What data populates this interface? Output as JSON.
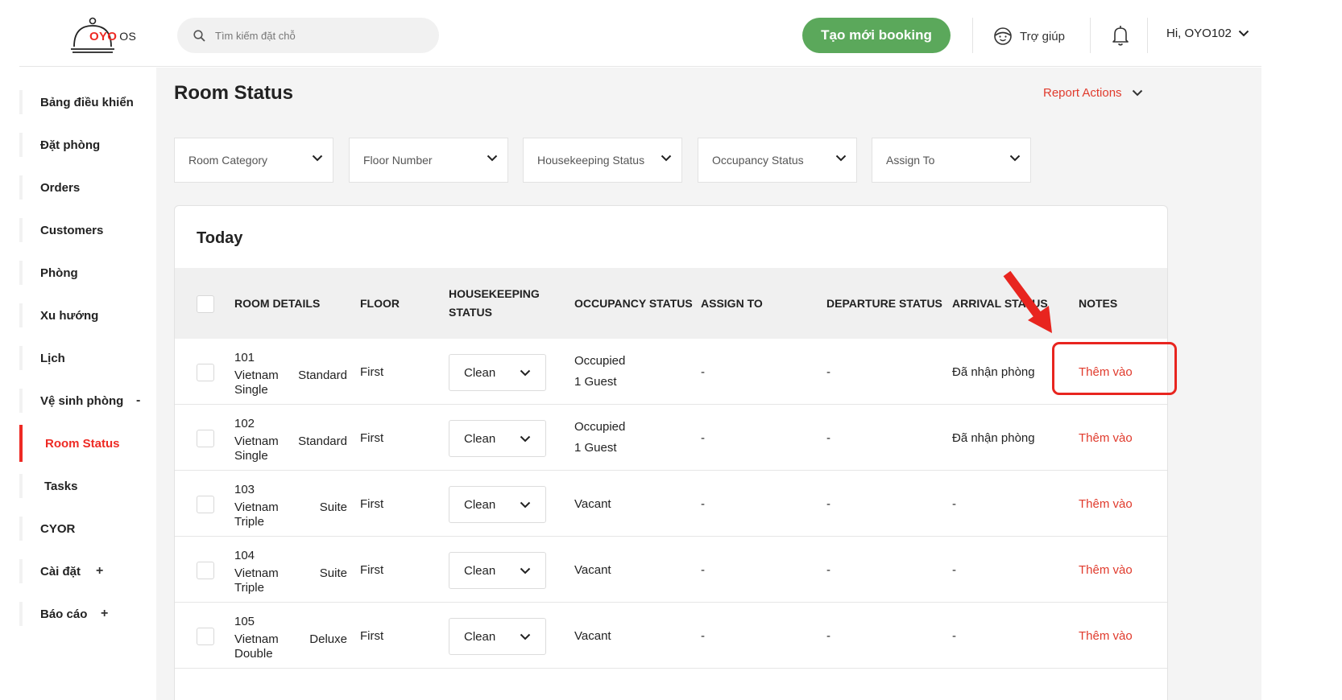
{
  "header": {
    "logo_brand": "OYO",
    "logo_suffix": "OS",
    "search_placeholder": "Tìm kiếm đặt chỗ",
    "new_booking_label": "Tạo mới booking",
    "help_label": "Trợ giúp",
    "user_label": "Hi, OYO102"
  },
  "sidebar": {
    "items": [
      {
        "label": "Bảng điều khiển"
      },
      {
        "label": "Đặt phòng"
      },
      {
        "label": "Orders"
      },
      {
        "label": "Customers"
      },
      {
        "label": "Phòng"
      },
      {
        "label": "Xu hướng"
      },
      {
        "label": "Lịch"
      },
      {
        "label": "Vệ sinh phòng",
        "sign": "-"
      },
      {
        "label": "Room Status"
      },
      {
        "label": "Tasks"
      },
      {
        "label": "CYOR"
      },
      {
        "label": "Cài đặt",
        "sign": "+"
      },
      {
        "label": "Báo cáo",
        "sign": "+"
      }
    ],
    "active_item": "Room Status"
  },
  "main": {
    "title": "Room Status",
    "report_actions_label": "Report Actions",
    "filters": [
      {
        "label": "Room Category"
      },
      {
        "label": "Floor Number"
      },
      {
        "label": "Housekeeping Status"
      },
      {
        "label": "Occupancy Status"
      },
      {
        "label": "Assign To"
      }
    ],
    "card_title": "Today",
    "columns": {
      "room_details": "ROOM DETAILS",
      "floor": "FLOOR",
      "housekeeping_1": "HOUSEKEEPING",
      "housekeeping_2": "STATUS",
      "occupancy": "OCCUPANCY STATUS",
      "assign_to": "ASSIGN TO",
      "departure": "DEPARTURE STATUS",
      "arrival": "ARRIVAL STATUS",
      "notes": "NOTES"
    },
    "rows": [
      {
        "room_no": "101",
        "name": "Vietnam",
        "category": "Standard",
        "type": "Single",
        "floor": "First",
        "housekeeping": "Clean",
        "occupancy": "Occupied",
        "guests": "1 Guest",
        "assign_to": "-",
        "departure": "-",
        "arrival": "Đã nhận phòng",
        "notes": "Thêm vào"
      },
      {
        "room_no": "102",
        "name": "Vietnam",
        "category": "Standard",
        "type": "Single",
        "floor": "First",
        "housekeeping": "Clean",
        "occupancy": "Occupied",
        "guests": "1 Guest",
        "assign_to": "-",
        "departure": "-",
        "arrival": "Đã nhận phòng",
        "notes": "Thêm vào"
      },
      {
        "room_no": "103",
        "name": "Vietnam",
        "category": "Suite",
        "type": "Triple",
        "floor": "First",
        "housekeeping": "Clean",
        "occupancy": "Vacant",
        "guests": "",
        "assign_to": "-",
        "departure": "-",
        "arrival": "-",
        "notes": "Thêm vào"
      },
      {
        "room_no": "104",
        "name": "Vietnam",
        "category": "Suite",
        "type": "Triple",
        "floor": "First",
        "housekeeping": "Clean",
        "occupancy": "Vacant",
        "guests": "",
        "assign_to": "-",
        "departure": "-",
        "arrival": "-",
        "notes": "Thêm vào"
      },
      {
        "room_no": "105",
        "name": "Vietnam",
        "category": "Deluxe",
        "type": "Double",
        "floor": "First",
        "housekeeping": "Clean",
        "occupancy": "Vacant",
        "guests": "",
        "assign_to": "-",
        "departure": "-",
        "arrival": "-",
        "notes": "Thêm vào"
      }
    ]
  },
  "colors": {
    "brand_red": "#ee2a24",
    "accent_green": "#5ba85b",
    "link_red": "#e03a2c",
    "annotation_red": "#e8251f"
  },
  "icons": [
    "search-icon",
    "support-icon",
    "bell-icon",
    "chevron-down-icon",
    "annotation-arrow"
  ]
}
